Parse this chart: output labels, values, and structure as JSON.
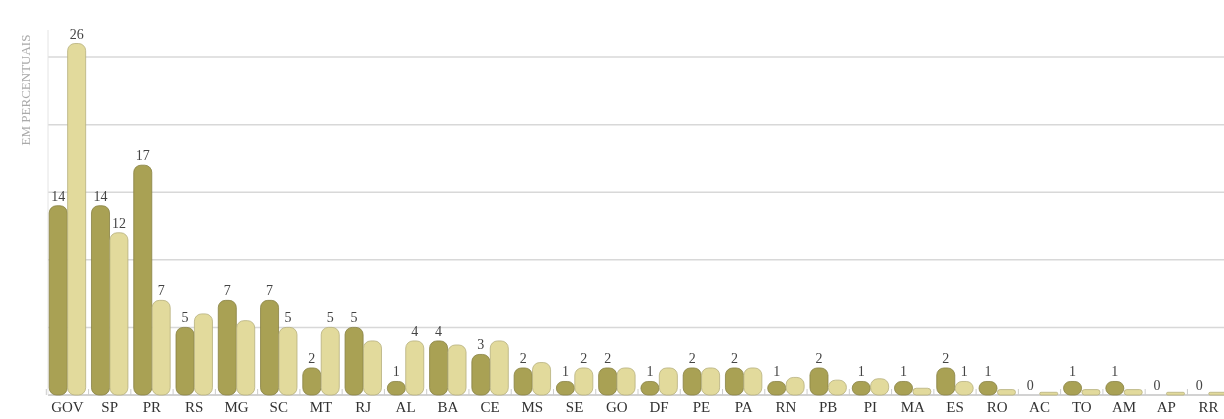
{
  "chart_data": {
    "type": "bar",
    "ylabel": "EM PERCENTUAIS",
    "categories": [
      "GOV",
      "SP",
      "PR",
      "RS",
      "MG",
      "SC",
      "MT",
      "RJ",
      "AL",
      "BA",
      "CE",
      "MS",
      "SE",
      "GO",
      "DF",
      "PE",
      "PA",
      "RN",
      "PB",
      "PI",
      "MA",
      "ES",
      "RO",
      "AC",
      "TO",
      "AM",
      "AP",
      "RR"
    ],
    "series": [
      {
        "color": "#a9a154",
        "values": [
          14,
          14,
          17,
          5,
          7,
          7,
          2,
          5,
          1,
          4,
          3,
          2,
          1,
          2,
          1,
          2,
          2,
          1,
          2,
          1,
          1,
          2,
          1,
          0,
          1,
          1,
          0,
          0
        ],
        "value_labels": [
          "14",
          "14",
          "17",
          "5",
          "7",
          "7",
          "2",
          "5",
          "1",
          "4",
          "3",
          "2",
          "1",
          "2",
          "1",
          "2",
          "2",
          "1",
          "2",
          "1",
          "1",
          "2",
          "1",
          "0",
          "1",
          "1",
          "0",
          "0"
        ]
      },
      {
        "color": "#e2da9c",
        "values": [
          26,
          12,
          7,
          6,
          5.5,
          5,
          5,
          4,
          4,
          3.7,
          4,
          2.4,
          2,
          2,
          2,
          2,
          2,
          1.3,
          1.1,
          1.2,
          0.5,
          1,
          0.4,
          0.2,
          0.4,
          0.4,
          0.2,
          0.2
        ],
        "value_labels": [
          "26",
          "12",
          "7",
          null,
          null,
          "5",
          "5",
          null,
          "4",
          null,
          null,
          null,
          "2",
          null,
          null,
          null,
          null,
          null,
          null,
          null,
          null,
          "1",
          null,
          null,
          null,
          null,
          null,
          null
        ]
      }
    ],
    "ylim": [
      0,
      27
    ],
    "yticks": [
      {
        "value": 0,
        "label": null
      },
      {
        "value": 5,
        "label": null
      },
      {
        "value": 10,
        "label": null
      },
      {
        "value": 15,
        "label": null
      },
      {
        "value": 20,
        "label": null
      },
      {
        "value": 25,
        "label": null
      }
    ],
    "grid": "y",
    "tick_labels": "x"
  }
}
